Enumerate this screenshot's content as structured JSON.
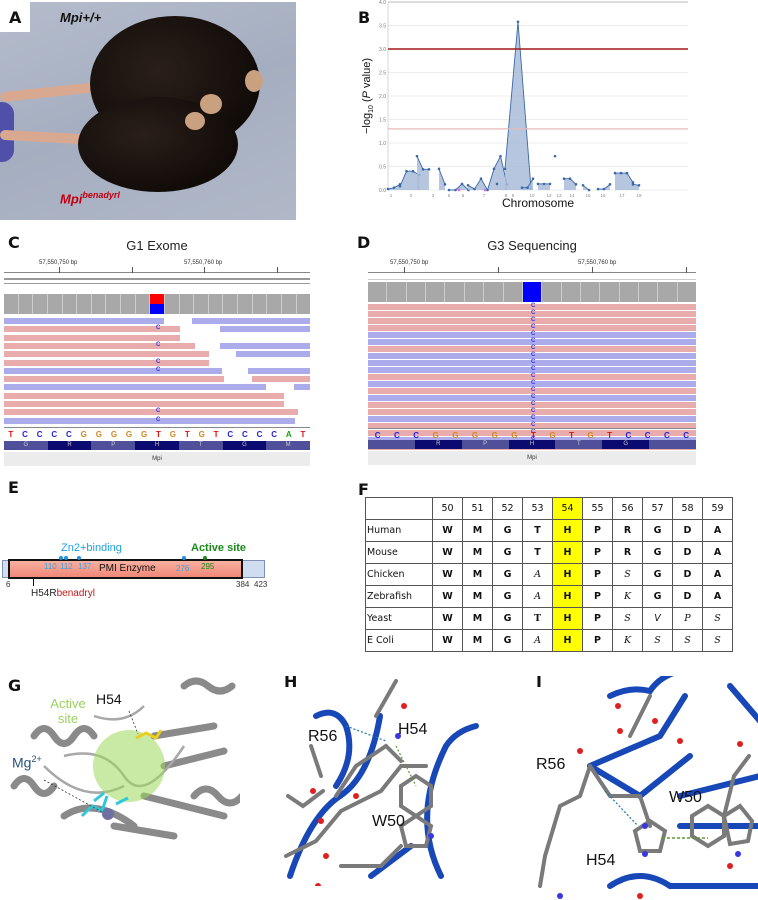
{
  "panels": {
    "A": {
      "letter": "A",
      "genotype_wt": "Mpi+/+",
      "genotype_mut_base": "Mpi",
      "genotype_mut_sup": "benadyrl"
    },
    "B": {
      "letter": "B"
    },
    "C": {
      "letter": "C",
      "title": "G1 Exome",
      "ruler_labels": [
        "57,550,750 bp",
        "57,550,760 bp"
      ],
      "sequence": [
        "T",
        "C",
        "C",
        "C",
        "C",
        "G",
        "G",
        "G",
        "G",
        "G",
        "T",
        "G",
        "T",
        "G",
        "T",
        "C",
        "C",
        "C",
        "C",
        "A",
        "T"
      ],
      "amino_acids": [
        "G",
        "R",
        "P",
        "H",
        "T",
        "G",
        "M"
      ],
      "gene": "Mpi",
      "variant_base": "C"
    },
    "D": {
      "letter": "D",
      "title": "G3 Sequencing",
      "ruler_labels": [
        "57,550,750 bp",
        "57,550,760 bp"
      ],
      "sequence": [
        "C",
        "C",
        "C",
        "G",
        "G",
        "G",
        "G",
        "G",
        "T",
        "G",
        "T",
        "G",
        "T",
        "C",
        "C",
        "C",
        "C"
      ],
      "amino_acids": [
        "",
        "R",
        "P",
        "H",
        "T",
        "G",
        ""
      ],
      "gene": "Mpi",
      "variant_base": "C"
    },
    "E": {
      "letter": "E",
      "zn_label": "Zn2+binding",
      "active_label": "Active site",
      "enzyme_label": "PMI Enzyme",
      "zn_positions": [
        "110",
        "112",
        "137",
        "276"
      ],
      "active_position": "295",
      "start": "6",
      "end_domain": "384",
      "end_protein": "423",
      "mutation_label": "H54R",
      "mutation_sup": "benadryl"
    },
    "F": {
      "letter": "F",
      "positions": [
        "50",
        "51",
        "52",
        "53",
        "54",
        "55",
        "56",
        "57",
        "58",
        "59"
      ],
      "rows": [
        {
          "species": "Human",
          "residues": [
            "W",
            "M",
            "G",
            "T",
            "H",
            "P",
            "R",
            "G",
            "D",
            "A"
          ]
        },
        {
          "species": "Mouse",
          "residues": [
            "W",
            "M",
            "G",
            "T",
            "H",
            "P",
            "R",
            "G",
            "D",
            "A"
          ]
        },
        {
          "species": "Chicken",
          "residues": [
            "W",
            "M",
            "G",
            "A",
            "H",
            "P",
            "S",
            "G",
            "D",
            "A"
          ]
        },
        {
          "species": "Zebrafish",
          "residues": [
            "W",
            "M",
            "G",
            "A",
            "H",
            "P",
            "K",
            "G",
            "D",
            "A"
          ]
        },
        {
          "species": "Yeast",
          "residues": [
            "W",
            "M",
            "G",
            "T",
            "H",
            "P",
            "S",
            "V",
            "P",
            "S"
          ]
        },
        {
          "species": "E Coli",
          "residues": [
            "W",
            "M",
            "G",
            "A",
            "H",
            "P",
            "K",
            "S",
            "S",
            "S"
          ]
        }
      ]
    },
    "G": {
      "letter": "G",
      "active_site": "Active site",
      "h54": "H54",
      "mg_base": "Mg",
      "mg_sup": "2+"
    },
    "H": {
      "letter": "H",
      "r56": "R56",
      "h54": "H54",
      "w50": "W50"
    },
    "I": {
      "letter": "I",
      "r56": "R56",
      "h54": "H54",
      "w50": "W50"
    }
  },
  "colors": {
    "threshold_strong": "#a01818",
    "threshold_weak": "#e8b8b8",
    "series": "#3a68a8",
    "fill": "#a8bcd8",
    "highlight": "#ffff00",
    "variant_red": "#ff0000",
    "variant_blue": "#0000ff"
  },
  "chart_data": {
    "type": "area",
    "title": "",
    "xlabel": "Chromosome",
    "ylabel": "-log10 (P value)",
    "ylim": [
      0,
      4.0
    ],
    "yticks": [
      "0.0",
      "0.5",
      "1.0",
      "1.5",
      "2.0",
      "2.5",
      "3.0",
      "3.5",
      "4.0"
    ],
    "xticks": [
      "1",
      "2",
      "3",
      "5",
      "6",
      "7",
      "8",
      "9",
      "10",
      "12",
      "13",
      "14",
      "15",
      "16",
      "17",
      "19"
    ],
    "thresholds": [
      {
        "value": 3.0,
        "style": "dark red"
      },
      {
        "value": 1.3,
        "style": "light red"
      }
    ],
    "series": [
      {
        "name": "chr1",
        "values": [
          0.02,
          0.05,
          0.12
        ]
      },
      {
        "name": "chr2",
        "values": [
          0.08,
          0.4,
          0.4,
          0.32
        ]
      },
      {
        "name": "chr3",
        "values": [
          0.72,
          0.44,
          0.44
        ]
      },
      {
        "name": "chr5",
        "values": [
          0.45,
          0.12
        ]
      },
      {
        "name": "chr6",
        "values": [
          0.0,
          0.0,
          0.13,
          0.0
        ]
      },
      {
        "name": "chr7",
        "values": [
          0.1,
          0.02,
          0.24,
          0.0,
          0.45,
          0.72,
          0.12
        ]
      },
      {
        "name": "chr8",
        "values": [
          0.13
        ]
      },
      {
        "name": "chr9",
        "values": [
          0.45,
          3.58,
          0.03
        ]
      },
      {
        "name": "chr10",
        "values": [
          0.05,
          0.05,
          0.24
        ]
      },
      {
        "name": "chr12",
        "values": [
          0.13,
          0.13,
          0.13
        ]
      },
      {
        "name": "chr13",
        "values": [
          0.72
        ]
      },
      {
        "name": "chr14",
        "values": [
          0.24,
          0.24,
          0.12
        ]
      },
      {
        "name": "chr15",
        "values": [
          0.1,
          0.0
        ]
      },
      {
        "name": "chr16",
        "values": [
          0.02,
          0.02,
          0.12
        ]
      },
      {
        "name": "chr17",
        "values": [
          0.36,
          0.36,
          0.36,
          0.16
        ]
      },
      {
        "name": "chr19",
        "values": [
          0.12,
          0.1
        ]
      }
    ],
    "grid": true
  }
}
